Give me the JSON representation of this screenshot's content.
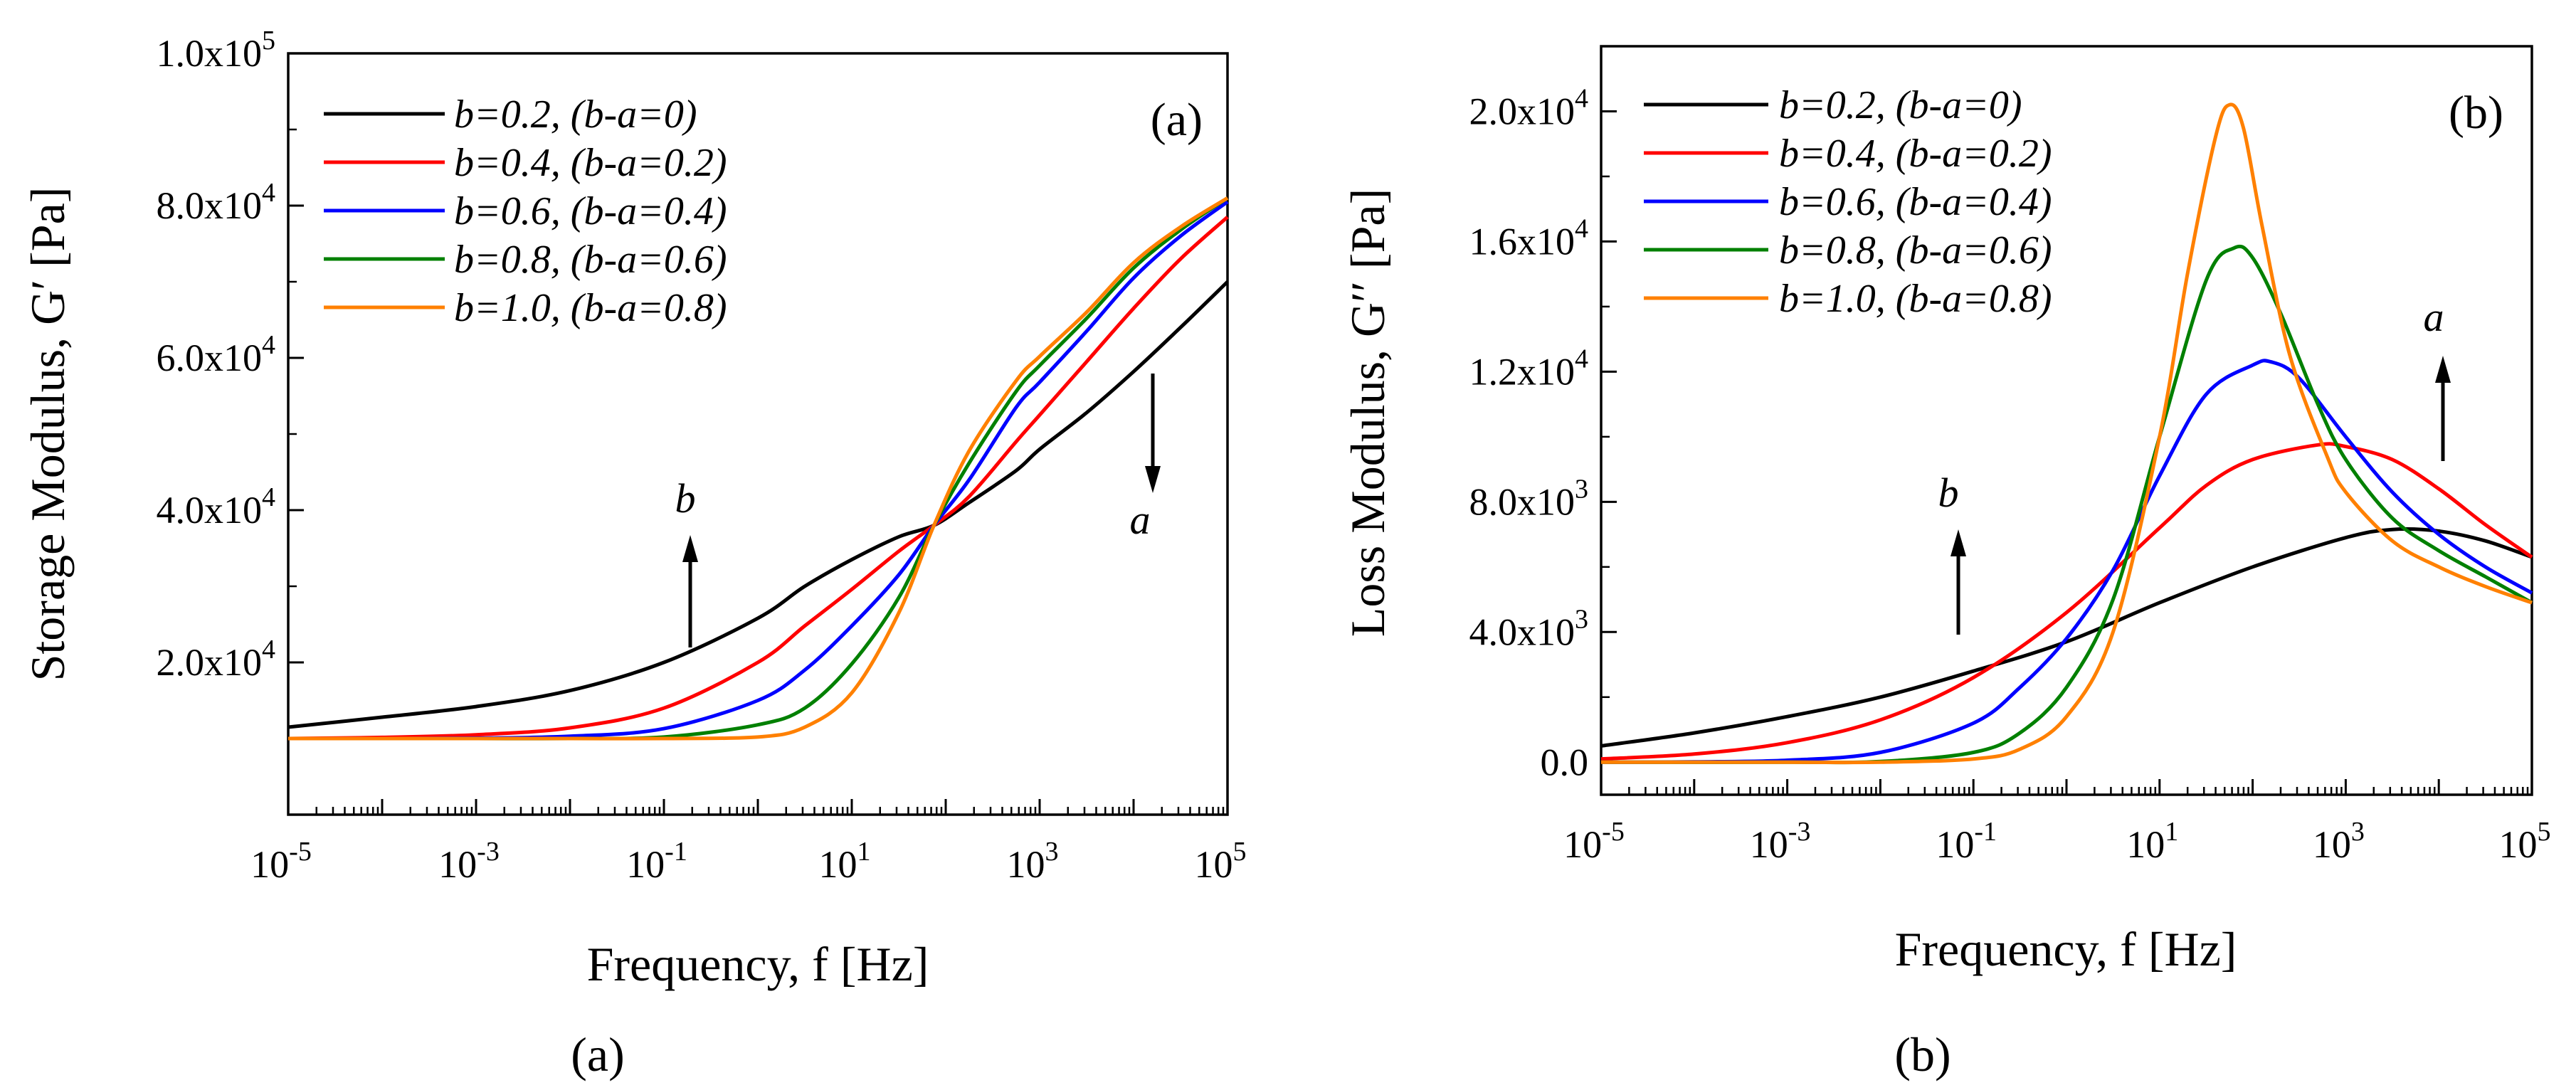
{
  "chart_data": [
    {
      "type": "line",
      "panel_tag": "(a)",
      "caption": "(a)",
      "xlabel": "Frequency, f [Hz]",
      "ylabel": "Storage Modulus, G′ [Pa]",
      "x_scale": "log",
      "xlim_log10": [
        -5,
        5
      ],
      "ylim": [
        0,
        100000
      ],
      "x_ticks": [
        {
          "base": "10",
          "exp": "-5"
        },
        {
          "base": "10",
          "exp": "-3"
        },
        {
          "base": "10",
          "exp": "-1"
        },
        {
          "base": "10",
          "exp": "1"
        },
        {
          "base": "10",
          "exp": "3"
        },
        {
          "base": "10",
          "exp": "5"
        }
      ],
      "y_ticks": [
        {
          "value": 20000,
          "mant": "2.0x10",
          "exp": "4"
        },
        {
          "value": 40000,
          "mant": "4.0x10",
          "exp": "4"
        },
        {
          "value": 60000,
          "mant": "6.0x10",
          "exp": "4"
        },
        {
          "value": 80000,
          "mant": "8.0x10",
          "exp": "4"
        },
        {
          "value": 100000,
          "mant": "1.0x10",
          "exp": "5"
        }
      ],
      "legend_position": "top-left",
      "x_log10": [
        -5,
        -4,
        -3,
        -2,
        -1,
        0,
        0.5,
        1,
        1.5,
        1.875,
        2.25,
        2.75,
        3,
        3.5,
        4,
        4.5,
        5
      ],
      "series": [
        {
          "name": "b=0.2, (b-a=0)",
          "color": "#000000",
          "values": [
            11500,
            12800,
            14200,
            16300,
            20000,
            25800,
            30000,
            33500,
            36500,
            38000,
            41000,
            45200,
            48000,
            52800,
            58200,
            64000,
            70000
          ]
        },
        {
          "name": "b=0.4, (b-a=0.2)",
          "color": "#ff0000",
          "values": [
            10000,
            10150,
            10500,
            11400,
            14000,
            20000,
            24800,
            29600,
            34600,
            38000,
            41800,
            49000,
            52500,
            59500,
            66500,
            73000,
            78500
          ]
        },
        {
          "name": "b=0.6, (b-a=0.4)",
          "color": "#0000ff",
          "values": [
            10000,
            10000,
            10050,
            10300,
            11300,
            15000,
            19000,
            24800,
            31500,
            38000,
            44000,
            53500,
            56800,
            63500,
            70500,
            76000,
            80500
          ]
        },
        {
          "name": "b=0.8, (b-a=0.6)",
          "color": "#008000",
          "values": [
            10000,
            10000,
            10000,
            10000,
            10200,
            11800,
            14000,
            19800,
            28500,
            38000,
            46200,
            55600,
            59000,
            65200,
            71800,
            76800,
            81000
          ]
        },
        {
          "name": "b=1.0, (b-a=0.8)",
          "color": "#ff8000",
          "values": [
            10000,
            10000,
            10000,
            10000,
            10000,
            10200,
            11500,
            16000,
            26500,
            38000,
            47800,
            57000,
            60200,
            66000,
            72500,
            77200,
            81000
          ]
        }
      ],
      "annotations": [
        {
          "text": "b",
          "arrow": "up"
        },
        {
          "text": "a",
          "arrow": "down"
        }
      ]
    },
    {
      "type": "line",
      "panel_tag": "(b)",
      "caption": "(b)",
      "xlabel": "Frequency, f [Hz]",
      "ylabel": "Loss Modulus, G′′ [Pa]",
      "x_scale": "log",
      "xlim_log10": [
        -5,
        5
      ],
      "ylim": [
        -1000,
        22000
      ],
      "x_ticks": [
        {
          "base": "10",
          "exp": "-5"
        },
        {
          "base": "10",
          "exp": "-3"
        },
        {
          "base": "10",
          "exp": "-1"
        },
        {
          "base": "10",
          "exp": "1"
        },
        {
          "base": "10",
          "exp": "3"
        },
        {
          "base": "10",
          "exp": "5"
        }
      ],
      "y_ticks": [
        {
          "value": 0,
          "mant": "0.0",
          "exp": ""
        },
        {
          "value": 4000,
          "mant": "4.0x10",
          "exp": "3"
        },
        {
          "value": 8000,
          "mant": "8.0x10",
          "exp": "3"
        },
        {
          "value": 12000,
          "mant": "1.2x10",
          "exp": "4"
        },
        {
          "value": 16000,
          "mant": "1.6x10",
          "exp": "4"
        },
        {
          "value": 20000,
          "mant": "2.0x10",
          "exp": "4"
        }
      ],
      "legend_position": "top-left",
      "series": [
        {
          "name": "b=0.2, (b-a=0)",
          "color": "#000000",
          "x_log10": [
            -5,
            -4,
            -3,
            -2,
            -1,
            0,
            1,
            2,
            3,
            3.5,
            4,
            4.5,
            5
          ],
          "values": [
            500,
            900,
            1400,
            2000,
            2800,
            3700,
            4900,
            6000,
            6900,
            7150,
            7100,
            6800,
            6300
          ]
        },
        {
          "name": "b=0.4, (b-a=0.2)",
          "color": "#ff0000",
          "x_log10": [
            -5,
            -4,
            -3,
            -2,
            -1,
            0,
            1,
            1.5,
            2,
            2.7,
            3,
            3.5,
            4,
            4.5,
            5
          ],
          "values": [
            100,
            250,
            600,
            1300,
            2600,
            4600,
            7200,
            8500,
            9300,
            9750,
            9700,
            9300,
            8400,
            7300,
            6300
          ]
        },
        {
          "name": "b=0.6, (b-a=0.4)",
          "color": "#0000ff",
          "x_log10": [
            -5,
            -4,
            -3,
            -2,
            -1,
            -0.5,
            0,
            0.5,
            1,
            1.5,
            2,
            2.2,
            2.5,
            3,
            3.5,
            4,
            4.5,
            5
          ],
          "values": [
            0,
            10,
            60,
            300,
            1200,
            2300,
            3800,
            5900,
            8800,
            11300,
            12200,
            12300,
            11800,
            10000,
            8300,
            7000,
            6000,
            5200
          ]
        },
        {
          "name": "b=0.8, (b-a=0.6)",
          "color": "#008000",
          "x_log10": [
            -5,
            -3,
            -2,
            -1,
            -0.5,
            0,
            0.5,
            1,
            1.5,
            1.8,
            2,
            2.3,
            2.7,
            3,
            3.5,
            4,
            4.5,
            5
          ],
          "values": [
            0,
            0,
            20,
            300,
            900,
            2300,
            5000,
            10000,
            14800,
            15800,
            15500,
            13800,
            11000,
            9300,
            7500,
            6500,
            5700,
            4900
          ]
        },
        {
          "name": "b=1.0, (b-a=0.8)",
          "color": "#ff8000",
          "x_log10": [
            -5,
            -3,
            -2,
            -1,
            -0.5,
            0,
            0.5,
            1,
            1.3,
            1.6,
            1.75,
            1.9,
            2.1,
            2.4,
            2.8,
            3,
            3.5,
            4,
            4.5,
            5
          ],
          "values": [
            0,
            0,
            0,
            100,
            400,
            1400,
            4000,
            10000,
            15000,
            19200,
            20200,
            19500,
            16500,
            12500,
            9400,
            8300,
            6800,
            6000,
            5400,
            4900
          ]
        }
      ],
      "annotations": [
        {
          "text": "b",
          "arrow": "up"
        },
        {
          "text": "a",
          "arrow": "up"
        }
      ]
    }
  ]
}
